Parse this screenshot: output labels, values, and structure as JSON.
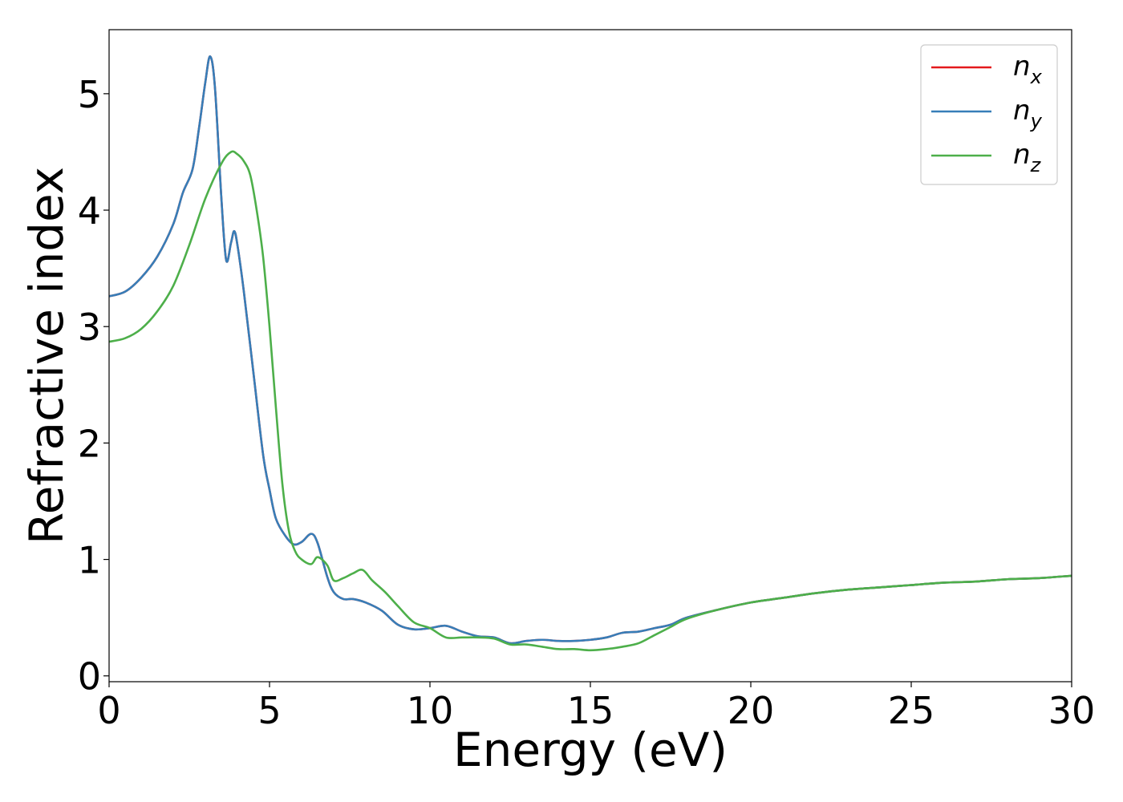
{
  "chart_data": {
    "type": "line",
    "xlabel": "Energy (eV)",
    "ylabel": "Refractive index",
    "xlim": [
      0,
      30
    ],
    "ylim": [
      -0.05,
      5.55
    ],
    "xticks": [
      "0",
      "5",
      "10",
      "15",
      "20",
      "25",
      "30"
    ],
    "yticks": [
      "0",
      "1",
      "2",
      "3",
      "4",
      "5"
    ],
    "grid": false,
    "legend_position": "top-right",
    "series": [
      {
        "name": "n",
        "subscript": "x",
        "color": "#e41a1c",
        "x": [
          0,
          0.5,
          1,
          1.5,
          2,
          2.3,
          2.6,
          2.8,
          3.0,
          3.15,
          3.3,
          3.5,
          3.65,
          3.8,
          3.9,
          4.0,
          4.2,
          4.5,
          4.8,
          5.0,
          5.2,
          5.5,
          5.75,
          6.0,
          6.3,
          6.5,
          6.8,
          7.0,
          7.3,
          7.6,
          8.0,
          8.5,
          9.0,
          9.5,
          10.0,
          10.5,
          11.0,
          11.5,
          12.0,
          12.5,
          13.0,
          13.5,
          14.0,
          14.5,
          15.0,
          15.5,
          16.0,
          16.5,
          17.0,
          17.5,
          18.0,
          19.0,
          20.0,
          21.0,
          22.0,
          23.0,
          24.0,
          25.0,
          26.0,
          27.0,
          28.0,
          29.0,
          30.0
        ],
        "y": [
          3.26,
          3.3,
          3.42,
          3.6,
          3.88,
          4.15,
          4.35,
          4.7,
          5.1,
          5.32,
          5.05,
          4.1,
          3.57,
          3.72,
          3.82,
          3.7,
          3.3,
          2.6,
          1.9,
          1.6,
          1.35,
          1.2,
          1.13,
          1.15,
          1.22,
          1.14,
          0.85,
          0.72,
          0.66,
          0.66,
          0.63,
          0.56,
          0.44,
          0.4,
          0.41,
          0.43,
          0.38,
          0.34,
          0.33,
          0.28,
          0.3,
          0.31,
          0.3,
          0.3,
          0.31,
          0.33,
          0.37,
          0.38,
          0.41,
          0.44,
          0.5,
          0.57,
          0.63,
          0.67,
          0.71,
          0.74,
          0.76,
          0.78,
          0.8,
          0.81,
          0.83,
          0.84,
          0.86
        ]
      },
      {
        "name": "n",
        "subscript": "y",
        "color": "#377eb8",
        "x": [
          0,
          0.5,
          1,
          1.5,
          2,
          2.3,
          2.6,
          2.8,
          3.0,
          3.15,
          3.3,
          3.5,
          3.65,
          3.8,
          3.9,
          4.0,
          4.2,
          4.5,
          4.8,
          5.0,
          5.2,
          5.5,
          5.75,
          6.0,
          6.3,
          6.5,
          6.8,
          7.0,
          7.3,
          7.6,
          8.0,
          8.5,
          9.0,
          9.5,
          10.0,
          10.5,
          11.0,
          11.5,
          12.0,
          12.5,
          13.0,
          13.5,
          14.0,
          14.5,
          15.0,
          15.5,
          16.0,
          16.5,
          17.0,
          17.5,
          18.0,
          19.0,
          20.0,
          21.0,
          22.0,
          23.0,
          24.0,
          25.0,
          26.0,
          27.0,
          28.0,
          29.0,
          30.0
        ],
        "y": [
          3.26,
          3.3,
          3.42,
          3.6,
          3.88,
          4.15,
          4.35,
          4.7,
          5.1,
          5.32,
          5.05,
          4.1,
          3.57,
          3.72,
          3.82,
          3.7,
          3.3,
          2.6,
          1.9,
          1.6,
          1.35,
          1.2,
          1.13,
          1.15,
          1.22,
          1.14,
          0.85,
          0.72,
          0.66,
          0.66,
          0.63,
          0.56,
          0.44,
          0.4,
          0.41,
          0.43,
          0.38,
          0.34,
          0.33,
          0.28,
          0.3,
          0.31,
          0.3,
          0.3,
          0.31,
          0.33,
          0.37,
          0.38,
          0.41,
          0.44,
          0.5,
          0.57,
          0.63,
          0.67,
          0.71,
          0.74,
          0.76,
          0.78,
          0.8,
          0.81,
          0.83,
          0.84,
          0.86
        ]
      },
      {
        "name": "n",
        "subscript": "z",
        "color": "#4daf4a",
        "x": [
          0,
          0.5,
          1,
          1.5,
          2,
          2.5,
          3.0,
          3.5,
          3.8,
          4.0,
          4.2,
          4.4,
          4.6,
          4.8,
          5.0,
          5.2,
          5.4,
          5.6,
          5.8,
          6.0,
          6.3,
          6.5,
          6.8,
          7.0,
          7.3,
          7.6,
          7.9,
          8.2,
          8.6,
          9.0,
          9.5,
          10.0,
          10.5,
          11.0,
          11.5,
          12.0,
          12.5,
          13.0,
          13.5,
          14.0,
          14.5,
          15.0,
          15.5,
          16.0,
          16.5,
          17.0,
          17.5,
          18.0,
          19.0,
          20.0,
          21.0,
          22.0,
          23.0,
          24.0,
          25.0,
          26.0,
          27.0,
          28.0,
          29.0,
          30.0
        ],
        "y": [
          2.87,
          2.9,
          2.98,
          3.13,
          3.35,
          3.7,
          4.1,
          4.4,
          4.5,
          4.48,
          4.42,
          4.3,
          4.0,
          3.6,
          3.0,
          2.3,
          1.65,
          1.25,
          1.07,
          1.0,
          0.96,
          1.02,
          0.95,
          0.82,
          0.84,
          0.88,
          0.91,
          0.82,
          0.72,
          0.6,
          0.46,
          0.41,
          0.33,
          0.33,
          0.33,
          0.32,
          0.27,
          0.27,
          0.25,
          0.23,
          0.23,
          0.22,
          0.23,
          0.25,
          0.28,
          0.35,
          0.42,
          0.49,
          0.57,
          0.63,
          0.67,
          0.71,
          0.74,
          0.76,
          0.78,
          0.8,
          0.81,
          0.83,
          0.84,
          0.86
        ]
      }
    ]
  }
}
